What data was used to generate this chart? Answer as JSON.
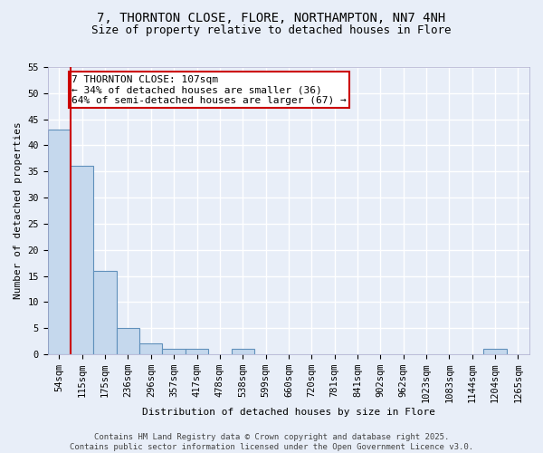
{
  "title_line1": "7, THORNTON CLOSE, FLORE, NORTHAMPTON, NN7 4NH",
  "title_line2": "Size of property relative to detached houses in Flore",
  "categories": [
    "54sqm",
    "115sqm",
    "175sqm",
    "236sqm",
    "296sqm",
    "357sqm",
    "417sqm",
    "478sqm",
    "538sqm",
    "599sqm",
    "660sqm",
    "720sqm",
    "781sqm",
    "841sqm",
    "902sqm",
    "962sqm",
    "1023sqm",
    "1083sqm",
    "1144sqm",
    "1204sqm",
    "1265sqm"
  ],
  "values": [
    43,
    36,
    16,
    5,
    2,
    1,
    1,
    0,
    1,
    0,
    0,
    0,
    0,
    0,
    0,
    0,
    0,
    0,
    0,
    1,
    0
  ],
  "bar_color": "#c5d8ed",
  "bar_edge_color": "#6090bb",
  "background_color": "#e8eef8",
  "grid_color": "#ffffff",
  "vline_x": 0.5,
  "vline_color": "#cc0000",
  "annotation_text": "7 THORNTON CLOSE: 107sqm\n← 34% of detached houses are smaller (36)\n64% of semi-detached houses are larger (67) →",
  "annotation_box_color": "#ffffff",
  "annotation_box_edge": "#cc0000",
  "xlabel": "Distribution of detached houses by size in Flore",
  "ylabel": "Number of detached properties",
  "ylim": [
    0,
    55
  ],
  "yticks": [
    0,
    5,
    10,
    15,
    20,
    25,
    30,
    35,
    40,
    45,
    50,
    55
  ],
  "footer_line1": "Contains HM Land Registry data © Crown copyright and database right 2025.",
  "footer_line2": "Contains public sector information licensed under the Open Government Licence v3.0.",
  "title_fontsize": 10,
  "subtitle_fontsize": 9,
  "axis_label_fontsize": 8,
  "tick_fontsize": 7.5,
  "annotation_fontsize": 8,
  "footer_fontsize": 6.5
}
